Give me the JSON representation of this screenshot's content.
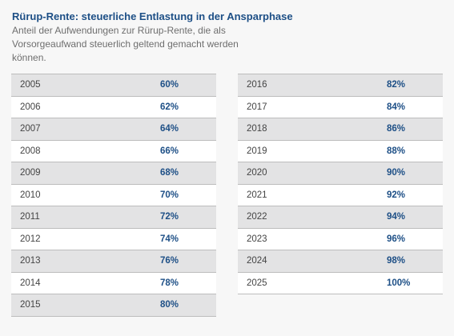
{
  "header": {
    "title": "Rürup-Rente: steuerliche Entlastung in der Ansparphase",
    "subtitle": "Anteil der Aufwendungen zur Rürup-Rente, die als Vorsorgeaufwand steuerlich geltend gemacht werden können."
  },
  "left_table": [
    {
      "year": "2005",
      "percent": "60%"
    },
    {
      "year": "2006",
      "percent": "62%"
    },
    {
      "year": "2007",
      "percent": "64%"
    },
    {
      "year": "2008",
      "percent": "66%"
    },
    {
      "year": "2009",
      "percent": "68%"
    },
    {
      "year": "2010",
      "percent": "70%"
    },
    {
      "year": "2011",
      "percent": "72%"
    },
    {
      "year": "2012",
      "percent": "74%"
    },
    {
      "year": "2013",
      "percent": "76%"
    },
    {
      "year": "2014",
      "percent": "78%"
    },
    {
      "year": "2015",
      "percent": "80%"
    }
  ],
  "right_table": [
    {
      "year": "2016",
      "percent": "82%"
    },
    {
      "year": "2017",
      "percent": "84%"
    },
    {
      "year": "2018",
      "percent": "86%"
    },
    {
      "year": "2019",
      "percent": "88%"
    },
    {
      "year": "2020",
      "percent": "90%"
    },
    {
      "year": "2021",
      "percent": "92%"
    },
    {
      "year": "2022",
      "percent": "94%"
    },
    {
      "year": "2023",
      "percent": "96%"
    },
    {
      "year": "2024",
      "percent": "98%"
    },
    {
      "year": "2025",
      "percent": "100%"
    }
  ],
  "colors": {
    "title": "#1d4f86",
    "percent": "#1d4f86",
    "row_shaded": "#e3e3e4",
    "row_plain": "#ffffff"
  }
}
